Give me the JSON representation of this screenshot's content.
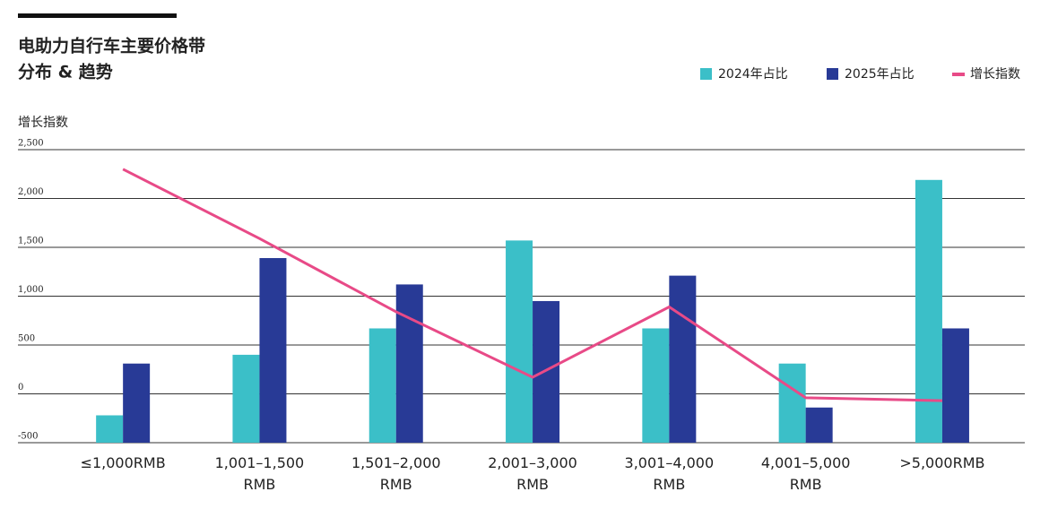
{
  "chart_data": {
    "type": "bar",
    "title": [
      "电助力自行车主要价格带",
      "分布 & 趋势"
    ],
    "y_label": "增长指数",
    "categories": [
      "≤1,000RMB",
      "1,001–1,500 RMB",
      "1,501–2,000 RMB",
      "2,001–3,000 RMB",
      "3,001–4,000 RMB",
      "4,001–5,000 RMB",
      ">5,000RMB"
    ],
    "series": [
      {
        "name": "2024年占比",
        "type": "bar",
        "color": "#3bbfc8",
        "values": [
          -220,
          400,
          670,
          1570,
          670,
          310,
          2190
        ]
      },
      {
        "name": "2025年占比",
        "type": "bar",
        "color": "#283a96",
        "values": [
          310,
          1390,
          1120,
          950,
          1210,
          -140,
          670
        ]
      },
      {
        "name": "增长指数",
        "type": "line",
        "color": "#e84a87",
        "values": [
          2300,
          1590,
          840,
          170,
          890,
          -40,
          -70
        ]
      }
    ],
    "ylim": [
      -500,
      2500
    ],
    "yticks": [
      -500,
      0,
      500,
      {
        "value": 1000,
        "label": "1,000"
      },
      {
        "value": 1500,
        "label": "1,500"
      },
      {
        "value": 2000,
        "label": "2,000"
      },
      {
        "value": 2500,
        "label": "2,500"
      }
    ],
    "grid": true
  }
}
